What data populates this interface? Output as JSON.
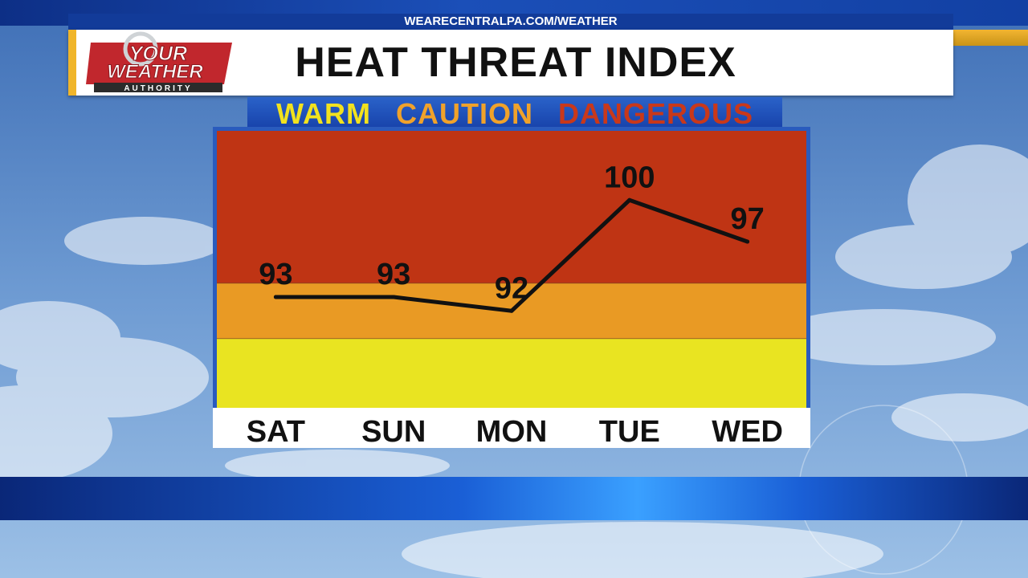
{
  "header": {
    "url": "WEARECENTRALPA.COM/WEATHER",
    "title": "HEAT THREAT INDEX"
  },
  "logo": {
    "line1": "YOUR",
    "line2": "WEATHER",
    "line3": "AUTHORITY"
  },
  "legend": {
    "warm": "WARM",
    "caution": "CAUTION",
    "dangerous": "DANGEROUS"
  },
  "colors": {
    "dangerous": "#bf3414",
    "caution": "#e99a24",
    "warm": "#e9e421",
    "line": "#111111"
  },
  "chart_data": {
    "type": "line",
    "title": "HEAT THREAT INDEX",
    "categories": [
      "SAT",
      "SUN",
      "MON",
      "TUE",
      "WED"
    ],
    "values": [
      93,
      93,
      92,
      100,
      97
    ],
    "labels": [
      "93",
      "93",
      "92",
      "100",
      "97"
    ],
    "ylim": [
      85,
      105
    ],
    "bands": [
      {
        "name": "WARM",
        "from": 85,
        "to": 90
      },
      {
        "name": "CAUTION",
        "from": 90,
        "to": 94
      },
      {
        "name": "DANGEROUS",
        "from": 94,
        "to": 105
      }
    ],
    "legend_position": "top",
    "grid": false
  }
}
